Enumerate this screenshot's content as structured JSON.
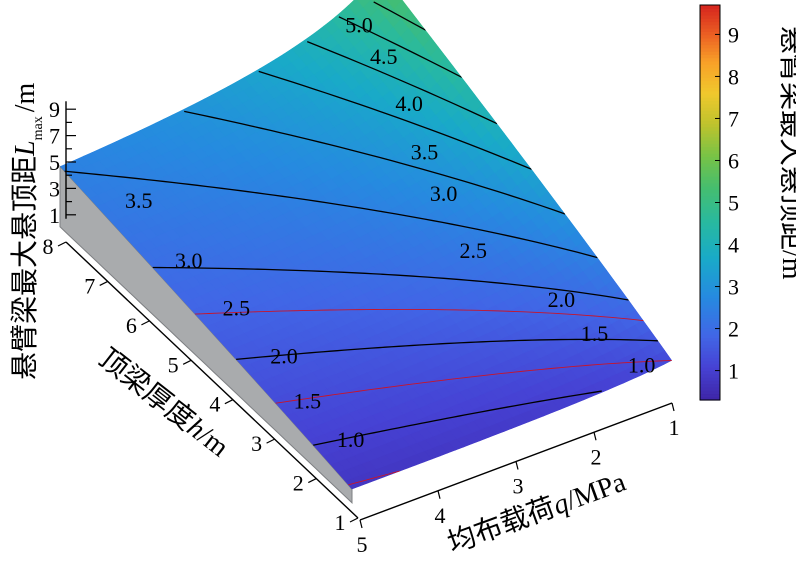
{
  "chart_data": {
    "type": "surface",
    "title": "",
    "zlabel": {
      "main": "悬臂梁最大悬顶距",
      "var": "L",
      "sub": "max",
      "unit": "/m"
    },
    "hlabel": {
      "main": "顶梁厚度",
      "var": "h",
      "unit": "/m"
    },
    "qlabel": {
      "main": "均布载荷",
      "var": "q",
      "unit": "/MPa"
    },
    "colorbar_label": "悬臂梁最大悬顶距/m",
    "x": {
      "name": "q",
      "range": [
        1,
        5
      ],
      "ticks": [
        1,
        2,
        3,
        4,
        5
      ]
    },
    "y": {
      "name": "h",
      "range": [
        1,
        8
      ],
      "ticks": [
        1,
        2,
        3,
        4,
        5,
        6,
        7,
        8
      ]
    },
    "z": {
      "name": "Lmax",
      "ticks": [
        1,
        3,
        5,
        7,
        9
      ]
    },
    "colorbar": {
      "range": [
        0.3,
        9.7
      ],
      "ticks": [
        1,
        2,
        3,
        4,
        5,
        6,
        7,
        8,
        9
      ]
    },
    "contour_levels": [
      1.0,
      1.5,
      2.0,
      2.5,
      3.0,
      3.5,
      4.0,
      4.5,
      5.0
    ],
    "contour_labels": [
      {
        "text": "5.0",
        "q": 1.55,
        "h": 7.45
      },
      {
        "text": "4.5",
        "q": 1.5,
        "h": 6.95
      },
      {
        "text": "4.0",
        "q": 1.6,
        "h": 6.15
      },
      {
        "text": "3.5",
        "q": 1.8,
        "h": 5.4
      },
      {
        "text": "3.0",
        "q": 1.9,
        "h": 4.75
      },
      {
        "text": "2.5",
        "q": 2.05,
        "h": 3.75
      },
      {
        "text": "2.0",
        "q": 1.6,
        "h": 2.5
      },
      {
        "text": "1.5",
        "q": 1.5,
        "h": 1.9
      },
      {
        "text": "1.0",
        "q": 1.25,
        "h": 1.25
      },
      {
        "text": "3.5",
        "q": 4.85,
        "h": 6.4
      },
      {
        "text": "3.0",
        "q": 4.85,
        "h": 5.2
      },
      {
        "text": "2.5",
        "q": 4.75,
        "h": 4.25
      },
      {
        "text": "2.0",
        "q": 4.65,
        "h": 3.3
      },
      {
        "text": "1.5",
        "q": 4.75,
        "h": 2.55
      },
      {
        "text": "1.0",
        "q": 4.6,
        "h": 1.8
      }
    ],
    "grid": false,
    "colormap": "parula"
  }
}
